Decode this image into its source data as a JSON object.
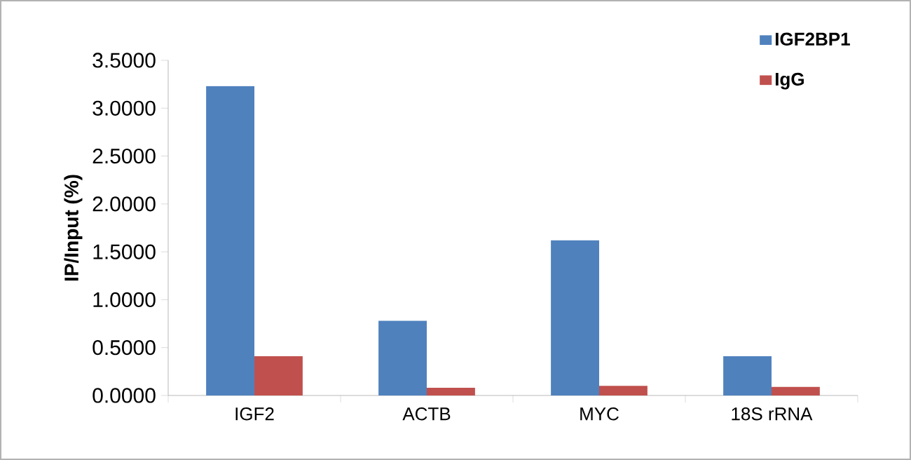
{
  "chart_data": {
    "type": "bar",
    "ylabel": "IP/Input (%)",
    "categories": [
      "IGF2",
      "ACTB",
      "MYC",
      "18S rRNA"
    ],
    "series": [
      {
        "name": "IGF2BP1",
        "color": "#4f81bd",
        "values": [
          3.23,
          0.78,
          1.62,
          0.41
        ]
      },
      {
        "name": "IgG",
        "color": "#c0504d",
        "values": [
          0.41,
          0.08,
          0.1,
          0.09
        ]
      }
    ],
    "ylim": [
      0,
      3.5
    ],
    "yticks": [
      {
        "value": 0,
        "label": "0.0000"
      },
      {
        "value": 0.5,
        "label": "0.5000"
      },
      {
        "value": 1,
        "label": "1.0000"
      },
      {
        "value": 1.5,
        "label": "1.5000"
      },
      {
        "value": 2,
        "label": "2.0000"
      },
      {
        "value": 2.5,
        "label": "2.5000"
      },
      {
        "value": 3,
        "label": "3.0000"
      },
      {
        "value": 3.5,
        "label": "3.5000"
      }
    ],
    "grid": false,
    "legend": "top right"
  }
}
